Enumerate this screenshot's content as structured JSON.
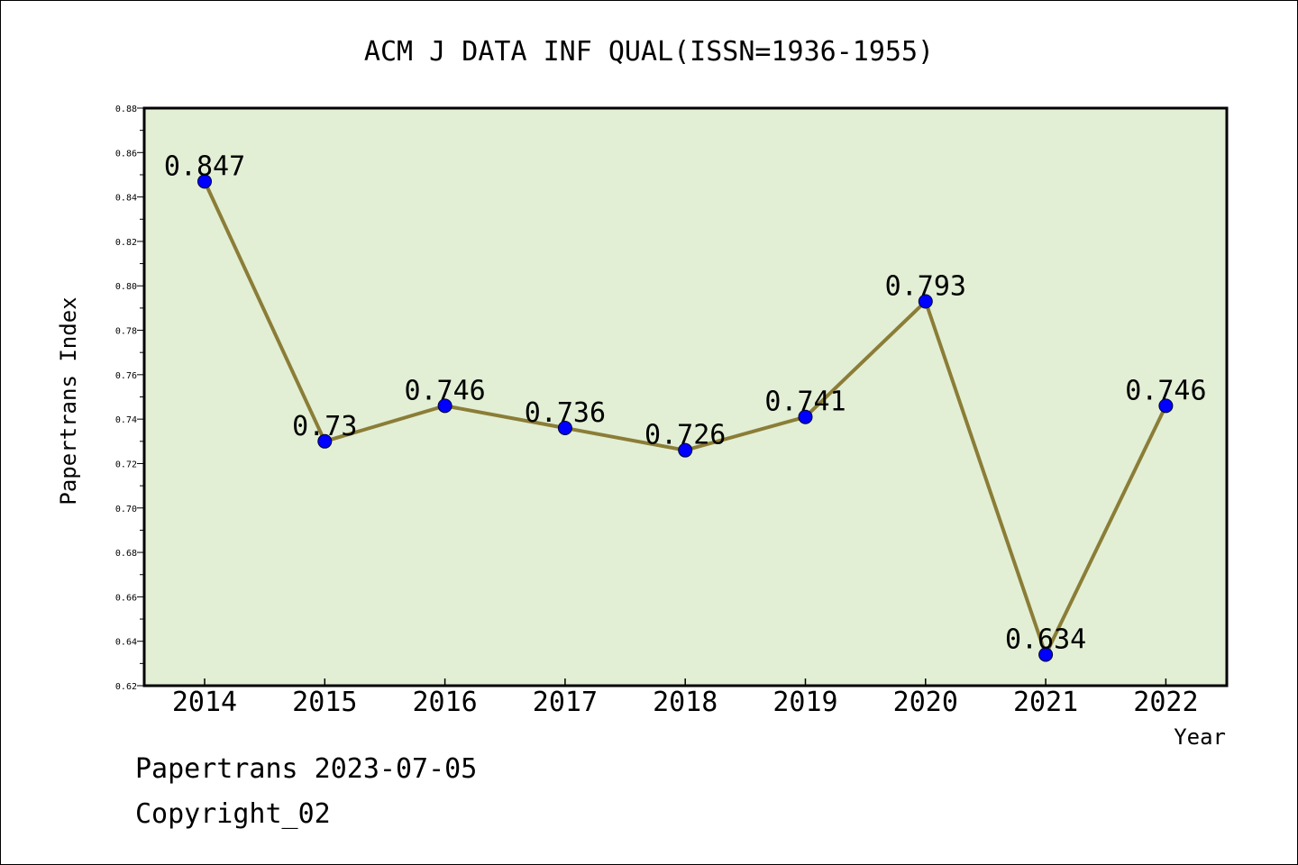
{
  "chart_data": {
    "type": "line",
    "title": "ACM J DATA INF QUAL(ISSN=1936-1955)",
    "xlabel": "Year",
    "ylabel": "Papertrans Index",
    "categories": [
      "2014",
      "2015",
      "2016",
      "2017",
      "2018",
      "2019",
      "2020",
      "2021",
      "2022"
    ],
    "series": [
      {
        "values": [
          0.847,
          0.73,
          0.746,
          0.736,
          0.726,
          0.741,
          0.793,
          0.634,
          0.746
        ]
      }
    ],
    "data_labels": [
      "0.847",
      "0.73",
      "0.746",
      "0.736",
      "0.726",
      "0.741",
      "0.793",
      "0.634",
      "0.746"
    ],
    "ylim": [
      0.62,
      0.88
    ],
    "yticks": [
      "0.62",
      "0.64",
      "0.66",
      "0.68",
      "0.70",
      "0.72",
      "0.74",
      "0.76",
      "0.78",
      "0.80",
      "0.82",
      "0.84",
      "0.86",
      "0.88"
    ],
    "grid": false,
    "legend": "none",
    "colors": {
      "plot_background": "#e2efd5",
      "line": "#8b7d37",
      "marker": "#0000ff"
    }
  },
  "footer": {
    "date_line": "Papertrans 2023-07-05",
    "copyright": "Copyright_02"
  }
}
